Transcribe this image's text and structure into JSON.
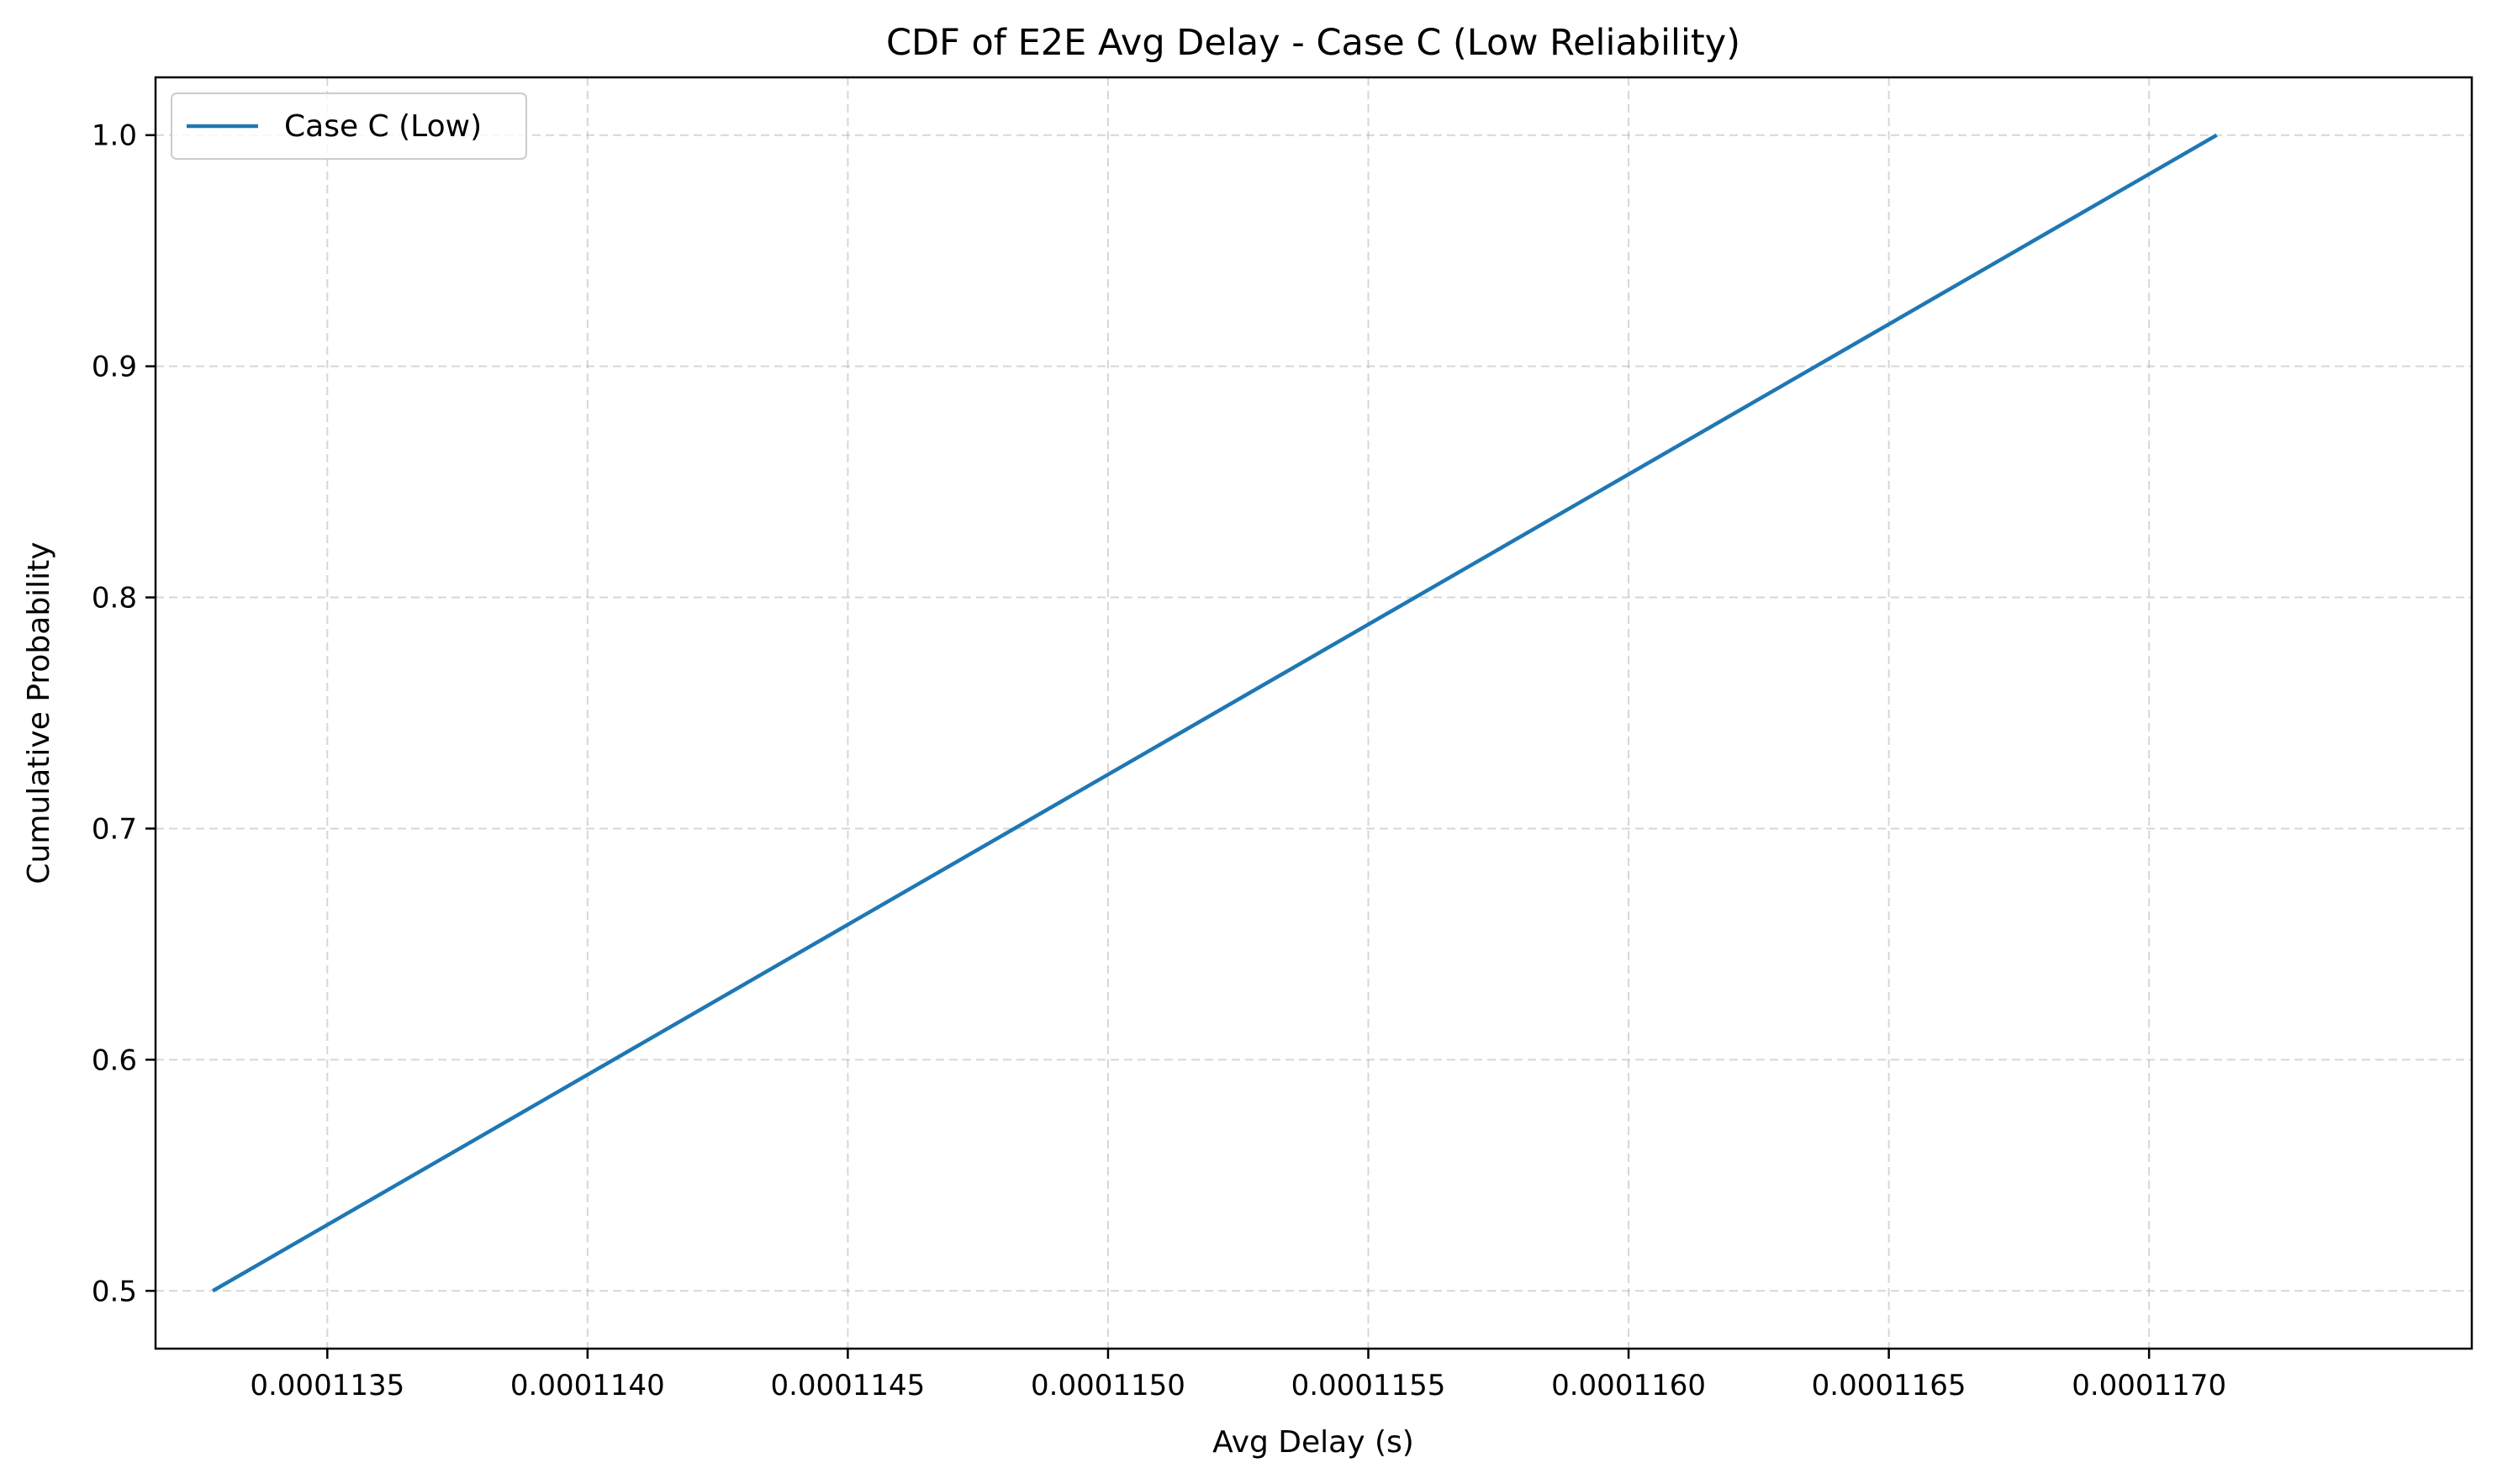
{
  "chart_data": {
    "type": "line",
    "title": "CDF of E2E Avg Delay - Case C (Low Reliability)",
    "xlabel": "Avg Delay (s)",
    "ylabel": "Cumulative Probability",
    "xlim": [
      0.00011317,
      0.00011762
    ],
    "ylim": [
      0.475,
      1.025
    ],
    "grid": true,
    "legend_position": "top-left",
    "x_ticks": [
      0.0001135,
      0.000114,
      0.0001145,
      0.000115,
      0.0001155,
      0.000116,
      0.0001165,
      0.000117
    ],
    "x_tick_labels": [
      "0.0001135",
      "0.0001140",
      "0.0001145",
      "0.0001150",
      "0.0001155",
      "0.0001160",
      "0.0001165",
      "0.0001170"
    ],
    "y_ticks": [
      0.5,
      0.6,
      0.7,
      0.8,
      0.9,
      1.0
    ],
    "y_tick_labels": [
      "0.5",
      "0.6",
      "0.7",
      "0.8",
      "0.9",
      "1.0"
    ],
    "series": [
      {
        "name": "Case C (Low)",
        "color": "#1f77b4",
        "x": [
          0.00011328,
          0.00011713
        ],
        "y": [
          0.5,
          1.0
        ]
      }
    ]
  }
}
